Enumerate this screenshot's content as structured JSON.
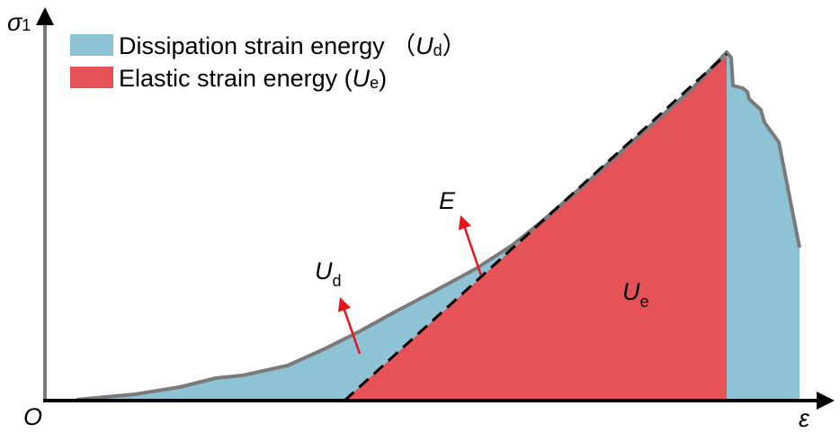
{
  "axes": {
    "y_label": {
      "symbol": "σ",
      "subscript": "1"
    },
    "x_label": "ε",
    "origin": "O"
  },
  "legend": [
    {
      "text": "Dissipation strain energy （",
      "symbol": "U",
      "subscript": "d",
      "close": "）",
      "color": "#8ec3d5"
    },
    {
      "text": "Elastic strain energy (",
      "symbol": "U",
      "subscript": "e",
      "close": ")",
      "color": "#e55358"
    }
  ],
  "annotations": [
    {
      "symbol": "E"
    },
    {
      "symbol": "U",
      "subscript": "d"
    },
    {
      "symbol": "U",
      "subscript": "e"
    }
  ]
}
